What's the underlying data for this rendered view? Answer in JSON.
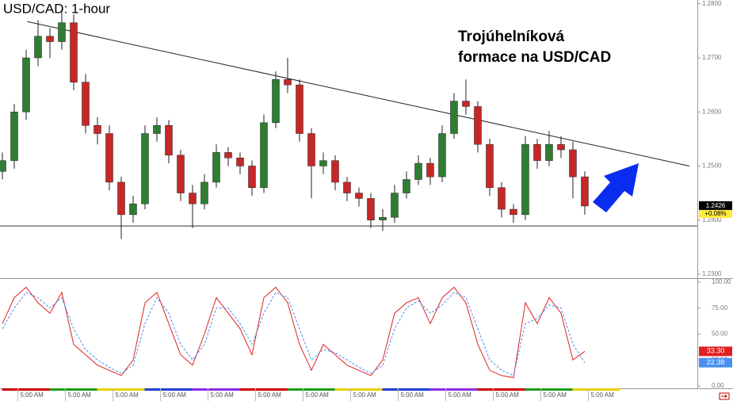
{
  "chart_data": [
    {
      "type": "candlestick",
      "title": "USD/CAD: 1-hour",
      "annotation": [
        "Trojúhelníková",
        "formace na USD/CAD"
      ],
      "up_color": "#2e7d32",
      "down_color": "#c62828",
      "open": [
        1.249,
        1.251,
        1.26,
        1.27,
        1.274,
        1.273,
        1.2765,
        1.2655,
        1.2575,
        1.256,
        1.247,
        1.241,
        1.243,
        1.256,
        1.2575,
        1.252,
        1.245,
        1.243,
        1.247,
        1.2525,
        1.2515,
        1.25,
        1.246,
        1.258,
        1.266,
        1.265,
        1.256,
        1.25,
        1.251,
        1.247,
        1.245,
        1.244,
        1.24,
        1.2405,
        1.245,
        1.2475,
        1.2505,
        1.248,
        1.256,
        1.262,
        1.261,
        1.254,
        1.246,
        1.242,
        1.241,
        1.254,
        1.251,
        1.254,
        1.253,
        1.248
      ],
      "high": [
        1.2525,
        1.2615,
        1.2715,
        1.277,
        1.2755,
        1.279,
        1.278,
        1.267,
        1.259,
        1.2575,
        1.248,
        1.2445,
        1.2575,
        1.259,
        1.2585,
        1.253,
        1.2465,
        1.2485,
        1.254,
        1.2535,
        1.2525,
        1.251,
        1.2595,
        1.2675,
        1.27,
        1.266,
        1.257,
        1.2525,
        1.252,
        1.248,
        1.246,
        1.245,
        1.242,
        1.2465,
        1.249,
        1.252,
        1.2515,
        1.2575,
        1.2635,
        1.266,
        1.262,
        1.255,
        1.247,
        1.243,
        1.2555,
        1.255,
        1.2565,
        1.2555,
        1.2545,
        1.249
      ],
      "low": [
        1.2475,
        1.2495,
        1.2585,
        1.2685,
        1.27,
        1.2715,
        1.264,
        1.256,
        1.254,
        1.2455,
        1.2365,
        1.2395,
        1.242,
        1.2545,
        1.2505,
        1.2435,
        1.2385,
        1.242,
        1.246,
        1.25,
        1.2485,
        1.2445,
        1.245,
        1.257,
        1.2635,
        1.2545,
        1.244,
        1.2485,
        1.2455,
        1.2435,
        1.2425,
        1.2385,
        1.238,
        1.2395,
        1.244,
        1.2465,
        1.2465,
        1.247,
        1.255,
        1.2595,
        1.2525,
        1.2445,
        1.2405,
        1.2395,
        1.24,
        1.2495,
        1.25,
        1.2515,
        1.244,
        1.241
      ],
      "close": [
        1.251,
        1.26,
        1.27,
        1.274,
        1.273,
        1.2765,
        1.2655,
        1.2575,
        1.256,
        1.247,
        1.241,
        1.243,
        1.256,
        1.2575,
        1.252,
        1.245,
        1.243,
        1.247,
        1.2525,
        1.2515,
        1.25,
        1.246,
        1.258,
        1.266,
        1.265,
        1.256,
        1.25,
        1.251,
        1.247,
        1.245,
        1.244,
        1.24,
        1.2405,
        1.245,
        1.2475,
        1.2505,
        1.248,
        1.256,
        1.262,
        1.261,
        1.254,
        1.246,
        1.242,
        1.241,
        1.254,
        1.251,
        1.254,
        1.253,
        1.248,
        1.2426
      ],
      "close_labels": [
        null,
        null,
        null,
        null,
        null,
        null,
        null,
        null,
        null,
        null,
        null,
        null,
        null,
        null,
        null,
        null,
        null,
        null,
        null,
        null,
        null,
        null,
        null,
        null,
        null,
        null,
        null,
        null,
        null,
        null,
        null,
        null,
        null,
        null,
        null,
        null,
        null,
        null,
        null,
        null,
        null,
        null,
        null,
        null,
        null,
        null,
        null,
        null,
        null,
        "1.2426"
      ],
      "change_label": "+0.08%",
      "trendline": {
        "x": [
          2.1,
          57.8
        ],
        "y": [
          1.2767,
          1.25
        ]
      },
      "support": 1.2389,
      "xlim": [
        -0.2,
        58.47
      ],
      "ylim": [
        1.2294,
        1.2807
      ],
      "yticks": [
        {
          "value": 1.28,
          "label": "1.2800"
        },
        {
          "value": 1.27,
          "label": "1.2700"
        },
        {
          "value": 1.26,
          "label": "1.2600"
        },
        {
          "value": 1.25,
          "label": "1.2500"
        },
        {
          "value": 1.24,
          "label": "1.2400"
        },
        {
          "value": 1.23,
          "label": "1.2300"
        }
      ]
    },
    {
      "type": "line",
      "series": [
        {
          "color": "#e02020",
          "dashed": false,
          "values": [
            60,
            85,
            95,
            80,
            70,
            90,
            40,
            30,
            20,
            15,
            10,
            25,
            80,
            90,
            60,
            30,
            20,
            50,
            85,
            70,
            55,
            30,
            85,
            95,
            80,
            40,
            15,
            40,
            30,
            20,
            15,
            10,
            25,
            70,
            80,
            85,
            60,
            85,
            95,
            80,
            40,
            15,
            10,
            8,
            80,
            60,
            85,
            70,
            25,
            33.3
          ],
          "value_labels": [
            null,
            null,
            null,
            null,
            null,
            null,
            null,
            null,
            null,
            null,
            null,
            null,
            null,
            null,
            null,
            null,
            null,
            null,
            null,
            null,
            null,
            null,
            null,
            null,
            null,
            null,
            null,
            null,
            null,
            null,
            null,
            null,
            null,
            null,
            null,
            null,
            null,
            null,
            null,
            null,
            null,
            null,
            null,
            null,
            null,
            null,
            null,
            null,
            null,
            "33.30"
          ]
        },
        {
          "color": "#4a8ff0",
          "dashed": true,
          "values": [
            55,
            75,
            90,
            85,
            75,
            85,
            55,
            35,
            25,
            18,
            12,
            20,
            60,
            85,
            70,
            40,
            25,
            40,
            75,
            75,
            60,
            40,
            70,
            90,
            85,
            55,
            25,
            35,
            32,
            25,
            18,
            12,
            20,
            55,
            75,
            82,
            70,
            78,
            90,
            85,
            55,
            25,
            15,
            10,
            60,
            65,
            78,
            75,
            40,
            22.38
          ],
          "value_labels": [
            null,
            null,
            null,
            null,
            null,
            null,
            null,
            null,
            null,
            null,
            null,
            null,
            null,
            null,
            null,
            null,
            null,
            null,
            null,
            null,
            null,
            null,
            null,
            null,
            null,
            null,
            null,
            null,
            null,
            null,
            null,
            null,
            null,
            null,
            null,
            null,
            null,
            null,
            null,
            null,
            null,
            null,
            null,
            null,
            null,
            null,
            null,
            null,
            null,
            "22.38"
          ]
        }
      ],
      "xlim": [
        -0.2,
        58.47
      ],
      "ylim": [
        -2.3,
        103
      ],
      "yticks": [
        {
          "value": 100,
          "label": "100.00"
        },
        {
          "value": 75,
          "label": "75.00"
        },
        {
          "value": 50,
          "label": "50.00"
        },
        {
          "value": 25,
          "label": "25.00"
        },
        {
          "value": 0,
          "label": "0.00"
        }
      ],
      "xticks": [
        {
          "value": 1.3,
          "label": "5:00 AM"
        },
        {
          "value": 5.3,
          "label": "5:00 AM"
        },
        {
          "value": 9.3,
          "label": "5:00 AM"
        },
        {
          "value": 13.3,
          "label": "5:00 AM"
        },
        {
          "value": 17.3,
          "label": "5:00 AM"
        },
        {
          "value": 21.3,
          "label": "5:00 AM"
        },
        {
          "value": 25.3,
          "label": "5:00 AM"
        },
        {
          "value": 29.3,
          "label": "5:00 AM"
        },
        {
          "value": 33.3,
          "label": "5:00 AM"
        },
        {
          "value": 37.3,
          "label": "5:00 AM"
        },
        {
          "value": 41.3,
          "label": "5:00 AM"
        },
        {
          "value": 45.3,
          "label": "5:00 AM"
        },
        {
          "value": 49.3,
          "label": "5:00 AM"
        }
      ]
    }
  ]
}
